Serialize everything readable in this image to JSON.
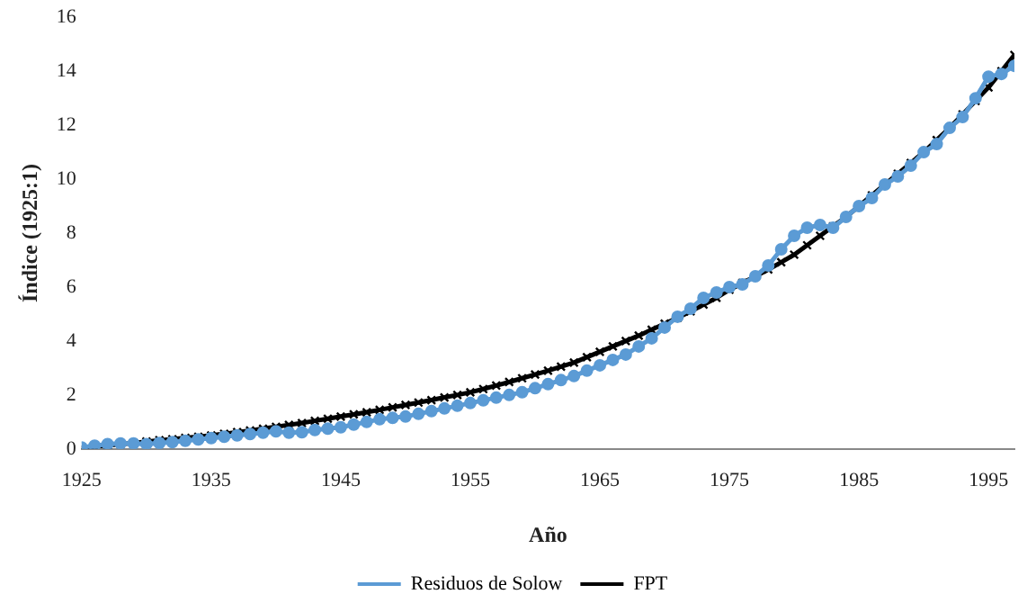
{
  "chart_data": {
    "type": "line",
    "xlabel": "Año",
    "ylabel": "Índice (1925:1)",
    "x": [
      1925,
      1926,
      1927,
      1928,
      1929,
      1930,
      1931,
      1932,
      1933,
      1934,
      1935,
      1936,
      1937,
      1938,
      1939,
      1940,
      1941,
      1942,
      1943,
      1944,
      1945,
      1946,
      1947,
      1948,
      1949,
      1950,
      1951,
      1952,
      1953,
      1954,
      1955,
      1956,
      1957,
      1958,
      1959,
      1960,
      1961,
      1962,
      1963,
      1964,
      1965,
      1966,
      1967,
      1968,
      1969,
      1970,
      1971,
      1972,
      1973,
      1974,
      1975,
      1976,
      1977,
      1978,
      1979,
      1980,
      1981,
      1982,
      1983,
      1984,
      1985,
      1986,
      1987,
      1988,
      1989,
      1990,
      1991,
      1992,
      1993,
      1994,
      1995,
      1996,
      1997
    ],
    "series": [
      {
        "name": "Residuos de Solow",
        "color": "#5b9bd5",
        "marker": "circle",
        "values": [
          0.05,
          0.12,
          0.18,
          0.2,
          0.2,
          0.18,
          0.22,
          0.25,
          0.3,
          0.35,
          0.4,
          0.45,
          0.5,
          0.55,
          0.6,
          0.65,
          0.6,
          0.62,
          0.7,
          0.75,
          0.8,
          0.9,
          1.0,
          1.1,
          1.15,
          1.2,
          1.3,
          1.4,
          1.5,
          1.6,
          1.7,
          1.8,
          1.9,
          2.0,
          2.1,
          2.25,
          2.4,
          2.55,
          2.7,
          2.9,
          3.1,
          3.3,
          3.5,
          3.8,
          4.1,
          4.5,
          4.9,
          5.2,
          5.6,
          5.8,
          6.0,
          6.1,
          6.4,
          6.8,
          7.4,
          7.9,
          8.2,
          8.3,
          8.2,
          8.6,
          9.0,
          9.3,
          9.8,
          10.1,
          10.5,
          11.0,
          11.3,
          11.9,
          12.3,
          13.0,
          13.8,
          13.9,
          14.2
        ]
      },
      {
        "name": "FPT",
        "color": "#000000",
        "marker": "cross",
        "values": [
          0.05,
          0.09,
          0.13,
          0.18,
          0.22,
          0.27,
          0.32,
          0.36,
          0.41,
          0.45,
          0.5,
          0.56,
          0.62,
          0.68,
          0.75,
          0.82,
          0.89,
          0.96,
          1.04,
          1.12,
          1.2,
          1.28,
          1.36,
          1.45,
          1.54,
          1.63,
          1.72,
          1.81,
          1.91,
          2.0,
          2.1,
          2.22,
          2.35,
          2.48,
          2.62,
          2.76,
          2.9,
          3.05,
          3.2,
          3.4,
          3.6,
          3.8,
          4.0,
          4.2,
          4.42,
          4.64,
          4.86,
          5.1,
          5.35,
          5.6,
          5.9,
          6.15,
          6.4,
          6.65,
          6.92,
          7.2,
          7.55,
          7.9,
          8.25,
          8.6,
          9.0,
          9.4,
          9.8,
          10.2,
          10.6,
          11.0,
          11.45,
          11.9,
          12.4,
          12.9,
          13.4,
          14.0,
          14.6
        ]
      }
    ],
    "xlim": [
      1925,
      1997
    ],
    "xticks": [
      1925,
      1935,
      1945,
      1955,
      1965,
      1975,
      1985,
      1995
    ],
    "ylim": [
      0,
      16
    ],
    "yticks": [
      0,
      2,
      4,
      6,
      8,
      10,
      12,
      14,
      16
    ],
    "grid": false,
    "legend": "bottom"
  }
}
